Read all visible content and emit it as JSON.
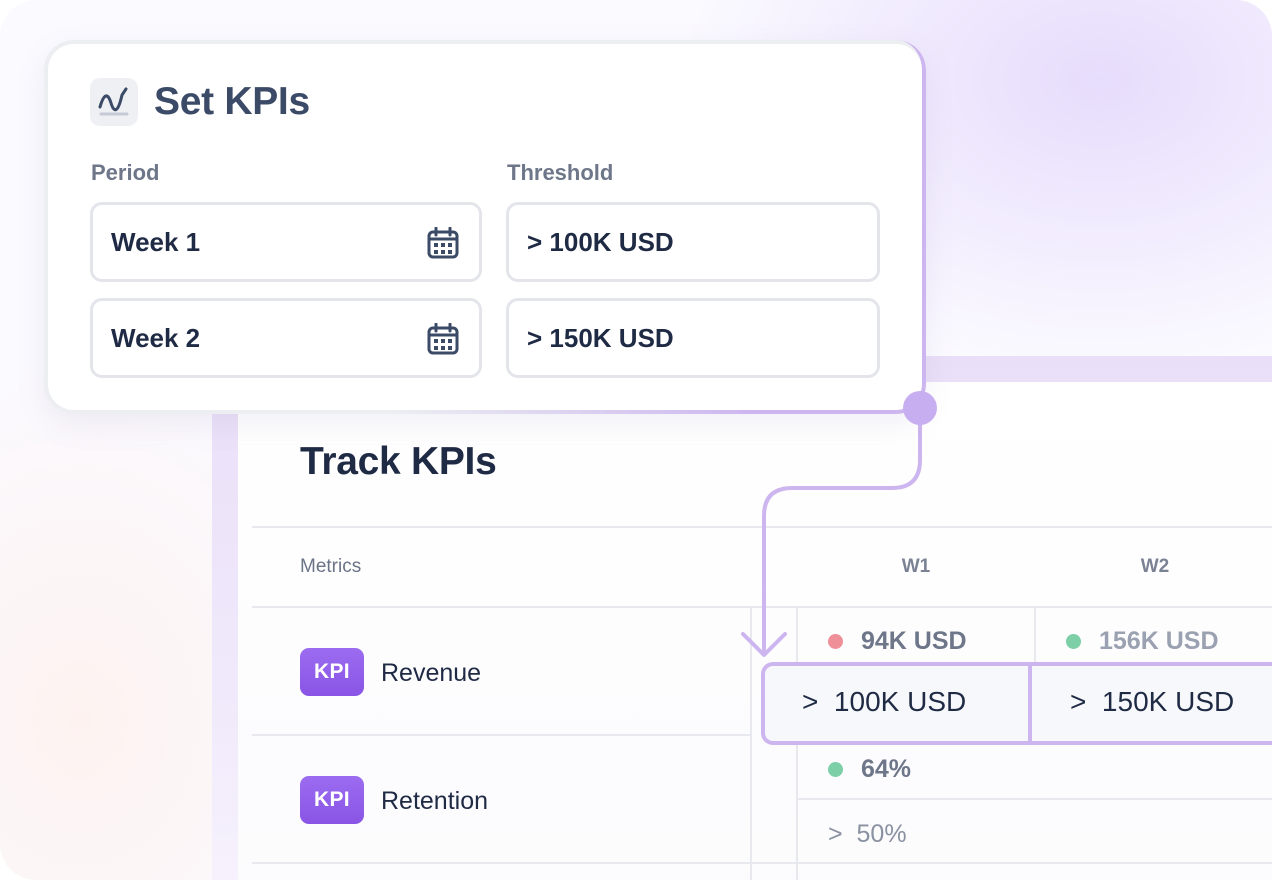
{
  "set_kpis": {
    "title": "Set KPIs",
    "logo_icon": "wave-chart-icon",
    "period_label": "Period",
    "threshold_label": "Threshold",
    "rows": [
      {
        "period": "Week 1",
        "threshold": "> 100K USD"
      },
      {
        "period": "Week 2",
        "threshold": "> 150K USD"
      }
    ],
    "calendar_icon": "calendar-icon"
  },
  "track_kpis": {
    "title": "Track KPIs",
    "columns": {
      "metrics": "Metrics",
      "w1": "W1",
      "w2": "W2"
    },
    "badge_label": "KPI",
    "metrics": [
      {
        "name": "Revenue",
        "values": [
          {
            "value": "94K USD",
            "status": "below",
            "dot_color": "#ef8f98"
          },
          {
            "value": "156K USD",
            "status": "above",
            "dot_color": "#7ccfa6"
          }
        ],
        "thresholds": [
          {
            "op": ">",
            "value": "100K USD"
          },
          {
            "op": ">",
            "value": "150K USD"
          }
        ]
      },
      {
        "name": "Retention",
        "values": [
          {
            "value": "64%",
            "status": "above",
            "dot_color": "#7ccfa6"
          }
        ],
        "thresholds": [
          {
            "op": ">",
            "value": "50%"
          }
        ]
      }
    ]
  },
  "colors": {
    "accent_purple": "#8a54e6",
    "connector": "#cdb6ef",
    "text_dark": "#1f2a44",
    "text_muted": "#6e7689"
  }
}
